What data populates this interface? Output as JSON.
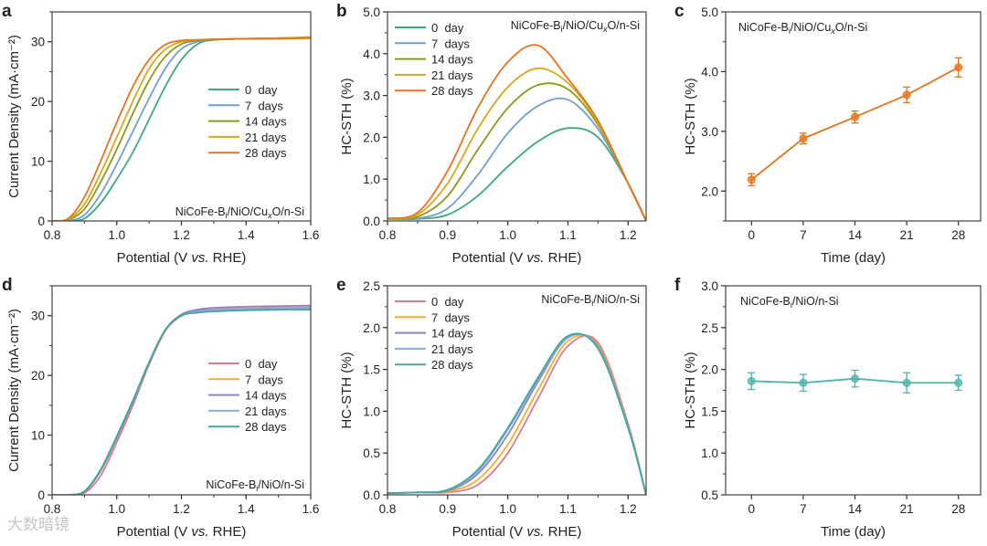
{
  "watermark": "大数暗镜",
  "chart_data": [
    {
      "panel": "a",
      "type": "line",
      "xlabel": "Potential (V vs. RHE)",
      "ylabel": "Current Density (mA·cm⁻²)",
      "xlim": [
        0.8,
        1.6
      ],
      "ylim": [
        0,
        35
      ],
      "xticks": [
        0.8,
        1.0,
        1.2,
        1.4,
        1.6
      ],
      "yticks": [
        0,
        10,
        20,
        30
      ],
      "annotation": [
        {
          "t": "NiCoFe-B"
        },
        {
          "t": "i",
          "sub": true
        },
        {
          "t": "/NiO/Cu"
        },
        {
          "t": "x",
          "sub": true
        },
        {
          "t": "O/n-Si"
        }
      ],
      "legend": "center-right",
      "x": [
        0.8,
        0.85,
        0.9,
        0.95,
        1.0,
        1.05,
        1.1,
        1.15,
        1.2,
        1.25,
        1.3,
        1.4,
        1.5,
        1.6
      ],
      "series": [
        {
          "name": "0  day",
          "color": "#3aaa7a",
          "values": [
            0,
            0,
            0.4,
            3,
            7,
            11.5,
            17,
            22.5,
            27,
            29.6,
            30.3,
            30.5,
            30.6,
            30.7
          ]
        },
        {
          "name": "7  days",
          "color": "#6f9fd0",
          "values": [
            0,
            0,
            1,
            4.5,
            9.5,
            15,
            20.5,
            25.5,
            28.8,
            30,
            30.4,
            30.5,
            30.6,
            30.7
          ]
        },
        {
          "name": "14 days",
          "color": "#8a9a1c",
          "values": [
            0,
            0.2,
            2,
            6.5,
            12,
            18,
            23.5,
            27.5,
            29.6,
            30.2,
            30.4,
            30.5,
            30.6,
            30.8
          ]
        },
        {
          "name": "21 days",
          "color": "#d8a818",
          "values": [
            0,
            0.3,
            2.8,
            8,
            14,
            20,
            25.5,
            28.7,
            30,
            30.3,
            30.4,
            30.5,
            30.6,
            30.7
          ]
        },
        {
          "name": "28 days",
          "color": "#e8731c",
          "values": [
            0,
            0.4,
            4,
            10,
            16.5,
            22.5,
            27,
            29.5,
            30.2,
            30.3,
            30.4,
            30.5,
            30.5,
            30.6
          ]
        }
      ]
    },
    {
      "panel": "b",
      "type": "line",
      "xlabel": "Potential (V vs. RHE)",
      "ylabel": "HC-STH (%)",
      "xlim": [
        0.8,
        1.23
      ],
      "ylim": [
        0,
        5
      ],
      "xticks": [
        0.8,
        0.9,
        1.0,
        1.1,
        1.2
      ],
      "yticks": [
        0,
        1,
        2,
        3,
        4,
        5
      ],
      "annotation": [
        {
          "t": "NiCoFe-B"
        },
        {
          "t": "i",
          "sub": true
        },
        {
          "t": "/NiO/Cu"
        },
        {
          "t": "x",
          "sub": true
        },
        {
          "t": "O/n-Si"
        }
      ],
      "legend": "top-left",
      "x": [
        0.8,
        0.85,
        0.9,
        0.95,
        1.0,
        1.05,
        1.1,
        1.15,
        1.2,
        1.23
      ],
      "series": [
        {
          "name": "0  day",
          "color": "#3aaa7a",
          "values": [
            0.05,
            0.05,
            0.15,
            0.6,
            1.3,
            1.9,
            2.22,
            2.0,
            0.9,
            0
          ]
        },
        {
          "name": "7  days",
          "color": "#6f9fd0",
          "values": [
            0.05,
            0.06,
            0.3,
            1.1,
            2.1,
            2.75,
            2.9,
            2.2,
            0.9,
            0
          ]
        },
        {
          "name": "14 days",
          "color": "#8a9a1c",
          "values": [
            0.05,
            0.1,
            0.6,
            1.7,
            2.7,
            3.25,
            3.15,
            2.3,
            0.9,
            0
          ]
        },
        {
          "name": "21 days",
          "color": "#d8a818",
          "values": [
            0.05,
            0.15,
            0.9,
            2.2,
            3.2,
            3.65,
            3.3,
            2.35,
            0.9,
            0
          ]
        },
        {
          "name": "28 days",
          "color": "#e8731c",
          "values": [
            0.06,
            0.2,
            1.2,
            2.7,
            3.8,
            4.2,
            3.4,
            2.4,
            0.9,
            0
          ]
        }
      ]
    },
    {
      "panel": "c",
      "type": "line",
      "xlabel": "Time (day)",
      "ylabel": "HC-STH (%)",
      "xlim": [
        -3.5,
        31
      ],
      "ylim": [
        1.5,
        5.0
      ],
      "xticks": [
        0,
        7,
        14,
        21,
        28
      ],
      "yticks": [
        2,
        3,
        4,
        5
      ],
      "annotation": [
        {
          "t": "NiCoFe-B"
        },
        {
          "t": "i",
          "sub": true
        },
        {
          "t": "/NiO/Cu"
        },
        {
          "t": "x",
          "sub": true
        },
        {
          "t": "O/n-Si"
        }
      ],
      "x": [
        0,
        7,
        14,
        21,
        28
      ],
      "series": [
        {
          "name": "NiCoFe-Bi/NiO/CuxO/n-Si",
          "color": "#e8731c",
          "values": [
            2.19,
            2.88,
            3.24,
            3.61,
            4.07
          ],
          "errors": [
            0.1,
            0.09,
            0.1,
            0.13,
            0.16
          ]
        }
      ]
    },
    {
      "panel": "d",
      "type": "line",
      "xlabel": "Potential (V vs. RHE)",
      "ylabel": "Current Density (mA·cm⁻²)",
      "xlim": [
        0.8,
        1.6
      ],
      "ylim": [
        0,
        35
      ],
      "xticks": [
        0.8,
        1.0,
        1.2,
        1.4,
        1.6
      ],
      "yticks": [
        0,
        10,
        20,
        30
      ],
      "annotation": [
        {
          "t": "NiCoFe-B"
        },
        {
          "t": "i",
          "sub": true
        },
        {
          "t": "/NiO/n-Si"
        }
      ],
      "legend": "center-right",
      "x": [
        0.8,
        0.85,
        0.9,
        0.95,
        1.0,
        1.05,
        1.1,
        1.15,
        1.2,
        1.25,
        1.3,
        1.4,
        1.5,
        1.6
      ],
      "series": [
        {
          "name": "0  day",
          "color": "#e07a8a",
          "values": [
            0,
            0,
            0.3,
            3.2,
            8.8,
            15,
            21.8,
            27.4,
            30,
            30.8,
            31,
            31.2,
            31.3,
            31.4
          ]
        },
        {
          "name": "7  days",
          "color": "#f0b030",
          "values": [
            0,
            0,
            0.5,
            4,
            9.5,
            15.5,
            22,
            27.5,
            30,
            30.6,
            30.8,
            31,
            31,
            31.1
          ]
        },
        {
          "name": "14 days",
          "color": "#9080c0",
          "values": [
            0,
            0,
            0.5,
            4,
            9.5,
            15.5,
            22,
            27.6,
            30.2,
            31,
            31.3,
            31.5,
            31.6,
            31.7
          ]
        },
        {
          "name": "21 days",
          "color": "#80b0e0",
          "values": [
            0,
            0,
            0.6,
            4.2,
            9.7,
            15.7,
            22.2,
            27.6,
            30,
            30.7,
            30.9,
            31.1,
            31.2,
            31.3
          ]
        },
        {
          "name": "28 days",
          "color": "#40a8a0",
          "values": [
            0,
            0,
            0.6,
            4.2,
            9.8,
            15.8,
            22.2,
            27.6,
            30,
            30.5,
            30.7,
            30.9,
            31,
            31
          ]
        }
      ]
    },
    {
      "panel": "e",
      "type": "line",
      "xlabel": "Potential (V vs. RHE)",
      "ylabel": "HC-STH (%)",
      "xlim": [
        0.8,
        1.23
      ],
      "ylim": [
        0,
        2.5
      ],
      "xticks": [
        0.8,
        0.9,
        1.0,
        1.1,
        1.2
      ],
      "yticks": [
        0,
        0.5,
        1.0,
        1.5,
        2.0,
        2.5
      ],
      "annotation": [
        {
          "t": "NiCoFe-B"
        },
        {
          "t": "i",
          "sub": true
        },
        {
          "t": "/NiO/n-Si"
        }
      ],
      "legend": "top-left",
      "x": [
        0.8,
        0.85,
        0.9,
        0.95,
        1.0,
        1.05,
        1.1,
        1.15,
        1.2,
        1.23
      ],
      "series": [
        {
          "name": "0  day",
          "color": "#e07a8a",
          "values": [
            0.02,
            0.03,
            0.03,
            0.12,
            0.5,
            1.15,
            1.78,
            1.82,
            0.85,
            0
          ]
        },
        {
          "name": "7  days",
          "color": "#f0b030",
          "values": [
            0.02,
            0.03,
            0.04,
            0.18,
            0.6,
            1.25,
            1.84,
            1.79,
            0.83,
            0
          ]
        },
        {
          "name": "14 days",
          "color": "#9080c0",
          "values": [
            0.02,
            0.03,
            0.05,
            0.25,
            0.72,
            1.35,
            1.88,
            1.77,
            0.82,
            0
          ]
        },
        {
          "name": "21 days",
          "color": "#80b0e0",
          "values": [
            0.02,
            0.03,
            0.06,
            0.28,
            0.78,
            1.38,
            1.89,
            1.76,
            0.81,
            0
          ]
        },
        {
          "name": "28 days",
          "color": "#40a8a0",
          "values": [
            0.02,
            0.03,
            0.06,
            0.3,
            0.8,
            1.4,
            1.9,
            1.75,
            0.8,
            0
          ]
        }
      ]
    },
    {
      "panel": "f",
      "type": "line",
      "xlabel": "Time (day)",
      "ylabel": "HC-STH (%)",
      "xlim": [
        -3.5,
        31
      ],
      "ylim": [
        0.5,
        3.0
      ],
      "xticks": [
        0,
        7,
        14,
        21,
        28
      ],
      "yticks": [
        0.5,
        1.0,
        1.5,
        2.0,
        2.5,
        3.0
      ],
      "annotation": [
        {
          "t": "NiCoFe-B"
        },
        {
          "t": "i",
          "sub": true
        },
        {
          "t": "/NiO/n-Si"
        }
      ],
      "x": [
        0,
        7,
        14,
        21,
        28
      ],
      "series": [
        {
          "name": "NiCoFe-Bi/NiO/n-Si",
          "color": "#4fb3a9",
          "values": [
            1.86,
            1.84,
            1.89,
            1.84,
            1.84
          ],
          "errors": [
            0.1,
            0.1,
            0.1,
            0.12,
            0.09
          ]
        }
      ]
    }
  ]
}
